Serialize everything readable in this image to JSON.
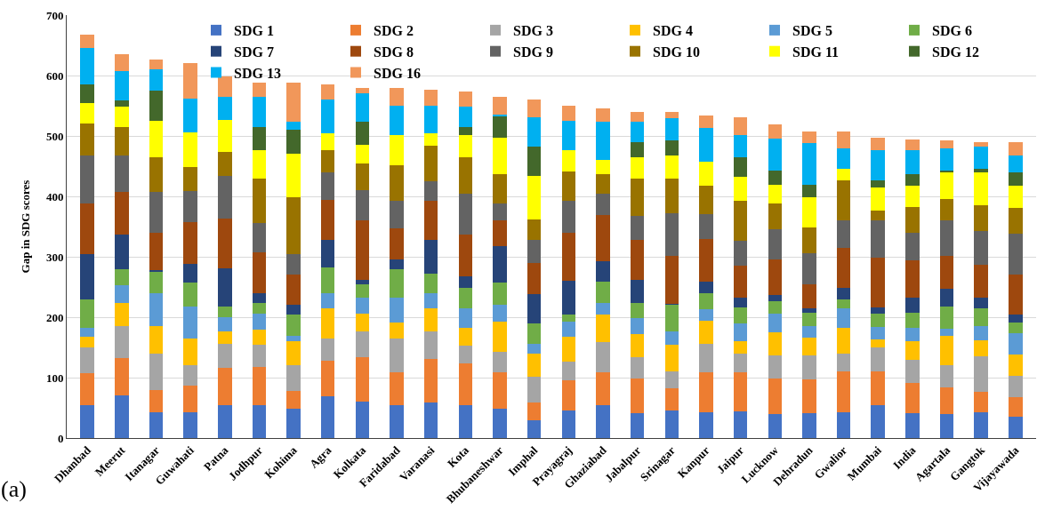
{
  "chart_data": {
    "type": "bar",
    "stacked": true,
    "ylabel": "Gap in SDG scores",
    "categories": [
      "Dhanbad",
      "Meerut",
      "Itanagar",
      "Guwahati",
      "Patna",
      "Jodhpur",
      "Kohima",
      "Agra",
      "Kolkata",
      "Faridabad",
      "Varanasi",
      "Kota",
      "Bhubaneshwar",
      "Imphal",
      "Prayagraj",
      "Ghaziabad",
      "Jabalpur",
      "Srinagar",
      "Kanpur",
      "Jaipur",
      "Lucknow",
      "Dehradun",
      "Gwalior",
      "Mumbai",
      "India",
      "Agartala",
      "Gangtok",
      "Vijayawada"
    ],
    "series": [
      {
        "name": "SDG 1",
        "color": "#4472c4",
        "values": [
          54,
          70,
          42,
          42,
          55,
          54,
          48,
          69,
          60,
          55,
          59,
          55,
          48,
          30,
          46,
          54,
          41,
          46,
          42,
          44,
          39,
          41,
          42,
          55,
          41,
          40,
          42,
          35
        ]
      },
      {
        "name": "SDG 2",
        "color": "#ed7d31",
        "values": [
          53,
          62,
          38,
          45,
          61,
          64,
          30,
          59,
          74,
          54,
          72,
          68,
          61,
          29,
          49,
          55,
          57,
          36,
          67,
          65,
          59,
          56,
          69,
          55,
          50,
          44,
          35,
          33
        ]
      },
      {
        "name": "SDG 3",
        "color": "#a5a5a5",
        "values": [
          43,
          53,
          60,
          33,
          40,
          37,
          42,
          37,
          42,
          56,
          45,
          30,
          33,
          42,
          31,
          50,
          36,
          28,
          47,
          31,
          39,
          40,
          29,
          40,
          39,
          37,
          58,
          35
        ]
      },
      {
        "name": "SDG 4",
        "color": "#ffc000",
        "values": [
          17,
          38,
          45,
          45,
          21,
          25,
          40,
          50,
          30,
          26,
          39,
          30,
          51,
          39,
          41,
          46,
          38,
          45,
          38,
          21,
          38,
          29,
          43,
          13,
          30,
          48,
          27,
          35
        ]
      },
      {
        "name": "SDG 5",
        "color": "#5b9bd5",
        "values": [
          16,
          30,
          55,
          52,
          23,
          26,
          9,
          25,
          27,
          42,
          25,
          31,
          27,
          16,
          26,
          19,
          26,
          21,
          19,
          29,
          31,
          19,
          32,
          21,
          23,
          12,
          23,
          35
        ]
      },
      {
        "name": "SDG 6",
        "color": "#70ad47",
        "values": [
          47,
          27,
          36,
          40,
          17,
          18,
          36,
          43,
          22,
          47,
          32,
          34,
          37,
          34,
          12,
          35,
          25,
          45,
          27,
          26,
          21,
          23,
          15,
          22,
          25,
          36,
          29,
          18
        ]
      },
      {
        "name": "SDG 7",
        "color": "#264478",
        "values": [
          75,
          57,
          2,
          31,
          64,
          15,
          15,
          45,
          7,
          16,
          56,
          19,
          61,
          48,
          56,
          33,
          39,
          1,
          19,
          17,
          10,
          6,
          19,
          10,
          24,
          30,
          19,
          14
        ]
      },
      {
        "name": "SDG 8",
        "color": "#9e480e",
        "values": [
          83,
          71,
          62,
          70,
          82,
          69,
          51,
          66,
          98,
          51,
          64,
          70,
          43,
          51,
          79,
          77,
          66,
          80,
          70,
          52,
          59,
          41,
          65,
          82,
          62,
          55,
          54,
          66
        ]
      },
      {
        "name": "SDG 9",
        "color": "#636363",
        "values": [
          80,
          60,
          67,
          51,
          71,
          48,
          33,
          45,
          51,
          45,
          33,
          67,
          27,
          39,
          52,
          35,
          39,
          70,
          42,
          41,
          50,
          51,
          46,
          62,
          46,
          58,
          55,
          67
        ]
      },
      {
        "name": "SDG 10",
        "color": "#997300",
        "values": [
          52,
          47,
          58,
          40,
          40,
          73,
          95,
          37,
          43,
          60,
          59,
          61,
          49,
          34,
          49,
          33,
          62,
          57,
          46,
          66,
          42,
          43,
          67,
          16,
          42,
          36,
          44,
          43
        ]
      },
      {
        "name": "SDG 11",
        "color": "#ffff00",
        "values": [
          34,
          34,
          60,
          57,
          52,
          47,
          71,
          28,
          32,
          49,
          21,
          36,
          60,
          72,
          35,
          23,
          36,
          38,
          41,
          41,
          31,
          49,
          18,
          38,
          35,
          44,
          54,
          36
        ]
      },
      {
        "name": "SDG 12",
        "color": "#43682b",
        "values": [
          32,
          10,
          50,
          0,
          0,
          39,
          40,
          0,
          37,
          0,
          0,
          13,
          35,
          48,
          0,
          0,
          25,
          25,
          0,
          32,
          24,
          21,
          0,
          13,
          20,
          3,
          5,
          22
        ]
      },
      {
        "name": "SDG 13",
        "color": "#00b0f0",
        "values": [
          60,
          48,
          36,
          56,
          39,
          50,
          14,
          56,
          48,
          49,
          45,
          35,
          3,
          49,
          49,
          64,
          34,
          37,
          55,
          36,
          52,
          69,
          35,
          50,
          39,
          37,
          38,
          28
        ]
      },
      {
        "name": "SDG 16",
        "color": "#f1975a",
        "values": [
          21,
          29,
          16,
          58,
          34,
          23,
          64,
          26,
          9,
          30,
          27,
          24,
          29,
          30,
          25,
          22,
          16,
          11,
          21,
          30,
          24,
          19,
          27,
          20,
          18,
          13,
          7,
          23
        ]
      }
    ],
    "ylim": [
      0,
      700
    ],
    "yticks": [
      0,
      100,
      200,
      300,
      400,
      500,
      600,
      700
    ],
    "grid": "y",
    "legend": "top right",
    "annotations": [
      "(a)"
    ]
  }
}
